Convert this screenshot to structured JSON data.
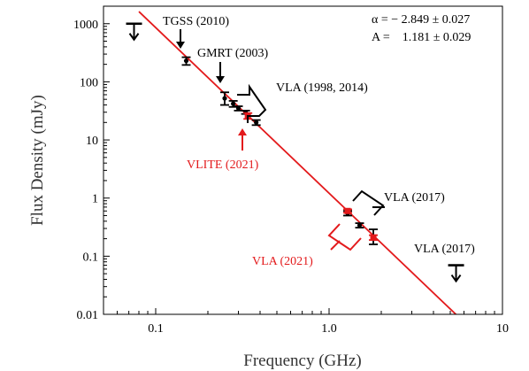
{
  "chart_data": {
    "type": "scatter",
    "xscale": "log",
    "yscale": "log",
    "xlim": [
      0.05,
      10
    ],
    "ylim": [
      0.01,
      2000
    ],
    "xlabel": "Frequency (GHz)",
    "ylabel": "Flux Density (mJy)",
    "xticks": [
      {
        "v": 0.1,
        "label": "0.1"
      },
      {
        "v": 1,
        "label": "1.0"
      },
      {
        "v": 10,
        "label": "10"
      }
    ],
    "yticks": [
      {
        "v": 0.01,
        "label": "0.01"
      },
      {
        "v": 0.1,
        "label": "0.1"
      },
      {
        "v": 1,
        "label": "1"
      },
      {
        "v": 10,
        "label": "10"
      },
      {
        "v": 100,
        "label": "100"
      },
      {
        "v": 1000,
        "label": "1000"
      }
    ],
    "fit": {
      "alpha": -2.849,
      "alpha_err": 0.027,
      "A": 1.181,
      "A_err": 0.029,
      "x_start": 0.08,
      "x_end": 5.5,
      "color": "#e31a1c"
    },
    "fit_label_alpha": "α = − 2.849 ± 0.027",
    "fit_label_A": "A =    1.181 ± 0.029",
    "series": [
      {
        "color": "#000000",
        "points": [
          {
            "x": 0.15,
            "y": 230,
            "ylo": 195,
            "yhi": 265
          },
          {
            "x": 0.25,
            "y": 52,
            "ylo": 40,
            "yhi": 66
          },
          {
            "x": 0.28,
            "y": 42,
            "ylo": 37,
            "yhi": 47
          },
          {
            "x": 0.3,
            "y": 35,
            "ylo": 32,
            "yhi": 38
          },
          {
            "x": 0.33,
            "y": 30,
            "ylo": 28,
            "yhi": 32
          },
          {
            "x": 0.38,
            "y": 20,
            "ylo": 18,
            "yhi": 22
          },
          {
            "x": 1.28,
            "y": 0.55,
            "ylo": 0.5,
            "yhi": 0.6
          },
          {
            "x": 1.5,
            "y": 0.34,
            "ylo": 0.31,
            "yhi": 0.37
          },
          {
            "x": 1.8,
            "y": 0.2,
            "ylo": 0.16,
            "yhi": 0.29
          }
        ]
      },
      {
        "color": "#e31a1c",
        "points": [
          {
            "x": 0.34,
            "y": 26,
            "ylo": 23,
            "yhi": 29
          },
          {
            "x": 1.28,
            "y": 0.6,
            "ylo": 0.56,
            "yhi": 0.64
          },
          {
            "x": 1.8,
            "y": 0.21,
            "ylo": 0.19,
            "yhi": 0.23
          }
        ]
      }
    ],
    "upper_limits": [
      {
        "x": 0.075,
        "y": 1000,
        "color": "#000000"
      },
      {
        "x": 5.4,
        "y": 0.07,
        "color": "#000000"
      }
    ],
    "annotations": [
      {
        "text": "TGSS (2010)",
        "color": "#000000"
      },
      {
        "text": "GMRT (2003)",
        "color": "#000000"
      },
      {
        "text": "VLA (1998, 2014)",
        "color": "#000000"
      },
      {
        "text": "VLITE (2021)",
        "color": "#e31a1c"
      },
      {
        "text": "VLA (2017)",
        "color": "#000000"
      },
      {
        "text": "VLA (2021)",
        "color": "#e31a1c"
      },
      {
        "text": "VLA (2017)",
        "color": "#000000"
      }
    ]
  }
}
